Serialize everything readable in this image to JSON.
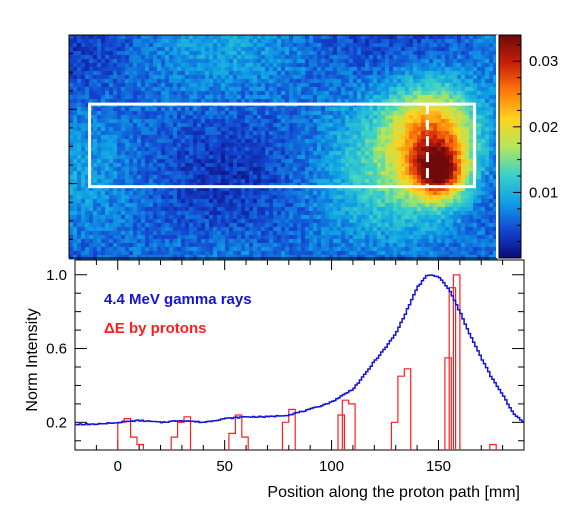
{
  "chart_data": [
    {
      "type": "heatmap",
      "title": "",
      "colorbar": {
        "range": [
          0.0,
          0.034
        ],
        "ticks": [
          0.01,
          0.02,
          0.03
        ],
        "tick_labels": [
          "0.01",
          "0.02",
          "0.03"
        ],
        "colors": [
          "#0a0a78",
          "#1446d2",
          "#0fa0e6",
          "#3cd2c8",
          "#b4e65a",
          "#ffd21e",
          "#ff780a",
          "#c81e0a",
          "#6e0a0a"
        ]
      },
      "background_level": 0.006,
      "hotspots": [
        {
          "x_mm": 138,
          "y_rel": 0.46,
          "amp": 0.018,
          "sx_mm": 14,
          "sy_rel": 0.16
        },
        {
          "x_mm": 140,
          "y_rel": 0.62,
          "amp": 0.018,
          "sx_mm": 8,
          "sy_rel": 0.08
        },
        {
          "x_mm": 115,
          "y_rel": 0.55,
          "amp": 0.004,
          "sx_mm": 18,
          "sy_rel": 0.3
        },
        {
          "x_mm": 174,
          "y_rel": 0.15,
          "amp": 0.005,
          "sx_mm": 1.5,
          "sy_rel": 0.03
        }
      ],
      "roi_box": {
        "x_range_mm": [
          -3,
          177
        ],
        "y_rel_range": [
          0.31,
          0.68
        ],
        "line_color": "#ffffff"
      },
      "dashed_marker_x_mm": 155
    },
    {
      "type": "line",
      "title": "",
      "xlabel": "Position along the proton path  [mm]",
      "ylabel": "Norm Intensity",
      "xlim": [
        -20,
        190
      ],
      "ylim": [
        0.05,
        1.08
      ],
      "xticks": [
        0,
        50,
        100,
        150
      ],
      "yticks": [
        0.2,
        0.6,
        1.0
      ],
      "ytick_labels": [
        "0.2",
        "0.6",
        "1.0"
      ],
      "legend_position": "top-left",
      "series": [
        {
          "name": "4.4 MeV gamma rays",
          "color": "#1414d2",
          "style": "step",
          "x": [
            -20,
            -10,
            0,
            10,
            20,
            30,
            40,
            50,
            60,
            70,
            80,
            90,
            100,
            110,
            115,
            120,
            125,
            130,
            135,
            140,
            145,
            150,
            155,
            160,
            165,
            170,
            175,
            180,
            185,
            190
          ],
          "y": [
            0.19,
            0.19,
            0.2,
            0.21,
            0.2,
            0.21,
            0.2,
            0.22,
            0.23,
            0.23,
            0.24,
            0.27,
            0.31,
            0.38,
            0.45,
            0.53,
            0.6,
            0.68,
            0.8,
            0.93,
            1.0,
            0.99,
            0.92,
            0.8,
            0.67,
            0.55,
            0.44,
            0.35,
            0.25,
            0.2
          ]
        },
        {
          "name": "ΔE by protons",
          "color": "#ff1e1e",
          "style": "histogram",
          "baseline": 0.05,
          "bins": [
            {
              "x": 0,
              "y": 0.2
            },
            {
              "x": 3,
              "y": 0.22
            },
            {
              "x": 6,
              "y": 0.12
            },
            {
              "x": 9,
              "y": 0.08
            },
            {
              "x": 25,
              "y": 0.12
            },
            {
              "x": 28,
              "y": 0.2
            },
            {
              "x": 31,
              "y": 0.23
            },
            {
              "x": 52,
              "y": 0.14
            },
            {
              "x": 55,
              "y": 0.24
            },
            {
              "x": 58,
              "y": 0.12
            },
            {
              "x": 77,
              "y": 0.2
            },
            {
              "x": 80,
              "y": 0.27
            },
            {
              "x": 103,
              "y": 0.24
            },
            {
              "x": 105,
              "y": 0.32
            },
            {
              "x": 108,
              "y": 0.3
            },
            {
              "x": 128,
              "y": 0.2
            },
            {
              "x": 131,
              "y": 0.45
            },
            {
              "x": 134,
              "y": 0.49
            },
            {
              "x": 153,
              "y": 0.55
            },
            {
              "x": 155,
              "y": 0.93
            },
            {
              "x": 157,
              "y": 1.0
            },
            {
              "x": 174,
              "y": 0.08
            }
          ]
        }
      ]
    }
  ]
}
